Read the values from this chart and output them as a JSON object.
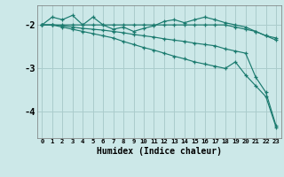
{
  "xlabel": "Humidex (Indice chaleur)",
  "bg_color": "#cce8e8",
  "line_color": "#1a7a6e",
  "grid_color": "#aacccc",
  "xlim": [
    -0.5,
    23.5
  ],
  "ylim": [
    -4.6,
    -1.55
  ],
  "yticks": [
    -4,
    -3,
    -2
  ],
  "xticks": [
    0,
    1,
    2,
    3,
    4,
    5,
    6,
    7,
    8,
    9,
    10,
    11,
    12,
    13,
    14,
    15,
    16,
    17,
    18,
    19,
    20,
    21,
    22,
    23
  ],
  "series": [
    [
      -2.0,
      -2.0,
      -2.0,
      -2.0,
      -2.0,
      -2.0,
      -2.0,
      -2.0,
      -2.0,
      -2.0,
      -2.0,
      -2.0,
      -2.0,
      -2.0,
      -2.0,
      -2.0,
      -2.0,
      -2.0,
      -2.0,
      -2.05,
      -2.1,
      -2.15,
      -2.25,
      -2.3
    ],
    [
      -2.0,
      -1.82,
      -1.88,
      -1.78,
      -2.0,
      -1.82,
      -2.0,
      -2.1,
      -2.05,
      -2.15,
      -2.08,
      -2.02,
      -1.92,
      -1.88,
      -1.95,
      -1.88,
      -1.82,
      -1.88,
      -1.95,
      -2.0,
      -2.05,
      -2.15,
      -2.25,
      -2.35
    ],
    [
      -2.0,
      -2.0,
      -2.05,
      -2.1,
      -2.15,
      -2.2,
      -2.25,
      -2.3,
      -2.38,
      -2.45,
      -2.52,
      -2.58,
      -2.65,
      -2.72,
      -2.78,
      -2.85,
      -2.9,
      -2.95,
      -3.0,
      -2.85,
      -3.15,
      -3.4,
      -3.65,
      -4.35
    ],
    [
      -2.0,
      -2.0,
      -2.02,
      -2.05,
      -2.08,
      -2.1,
      -2.12,
      -2.15,
      -2.18,
      -2.22,
      -2.25,
      -2.28,
      -2.32,
      -2.35,
      -2.38,
      -2.42,
      -2.45,
      -2.48,
      -2.55,
      -2.6,
      -2.65,
      -3.2,
      -3.55,
      -4.32
    ]
  ]
}
